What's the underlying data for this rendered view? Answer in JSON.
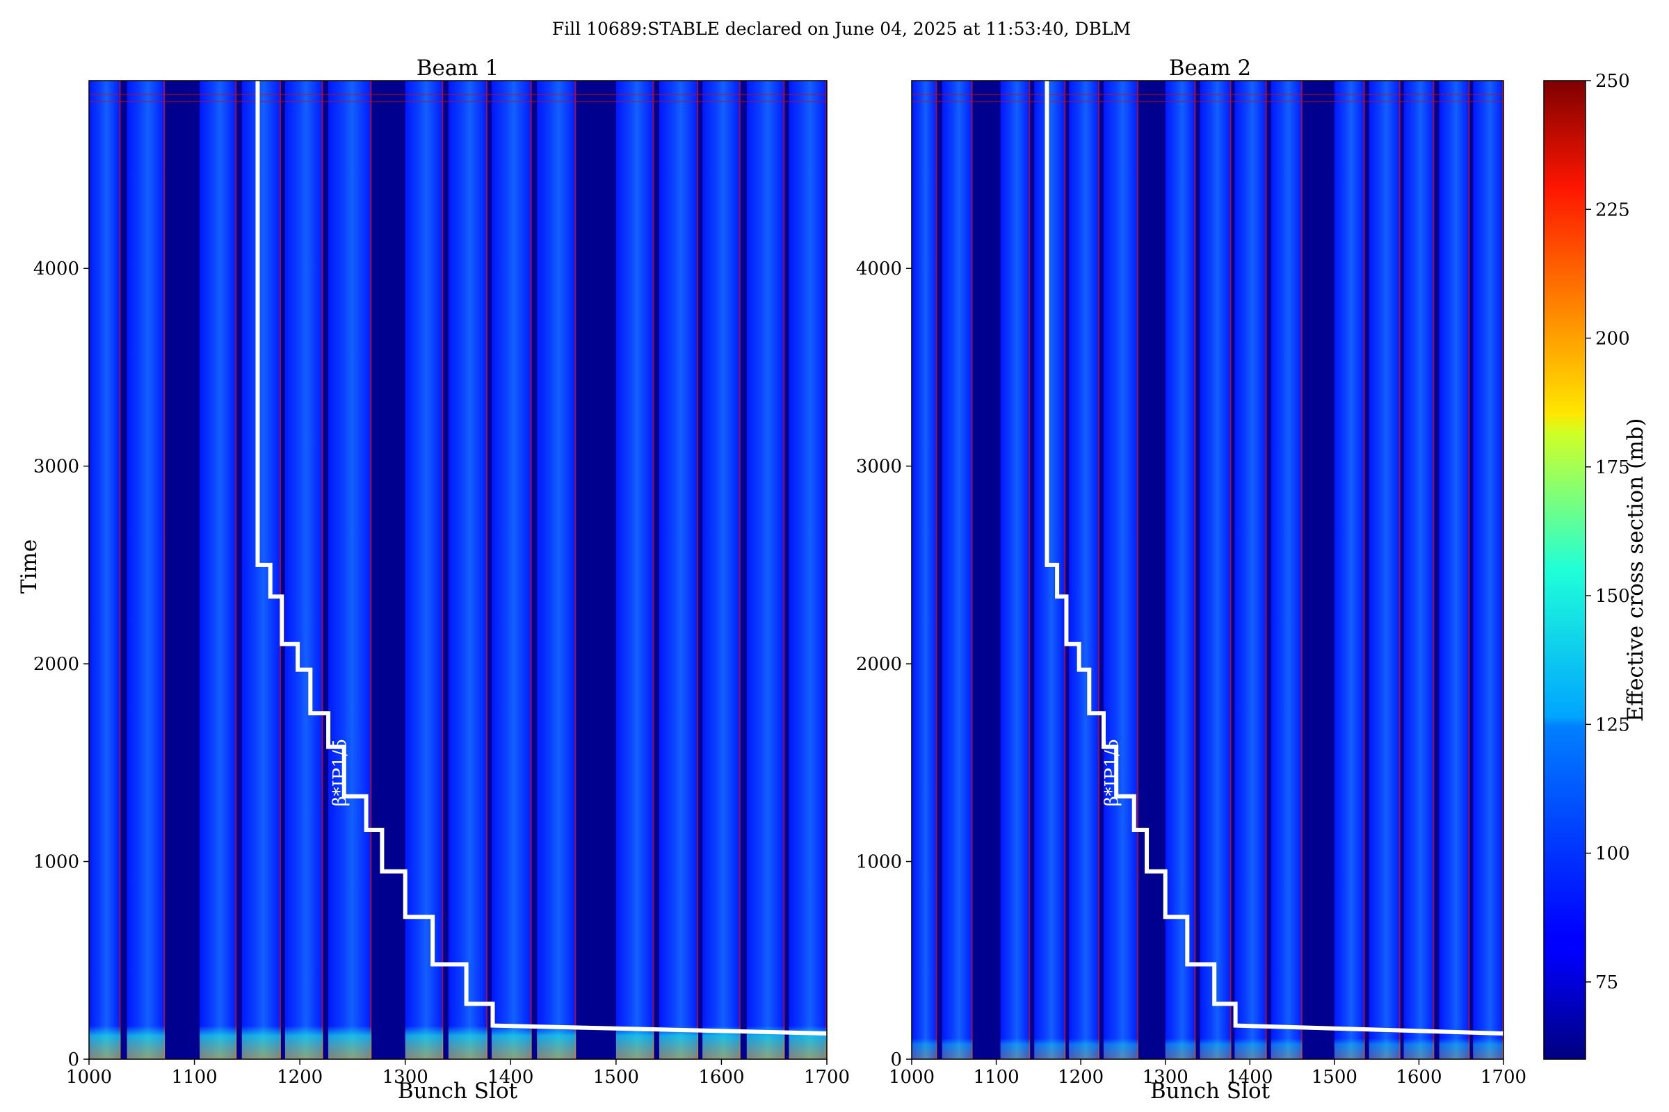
{
  "suptitle": "Fill 10689:STABLE declared on June 04, 2025 at 11:53:40, DBLM",
  "colors": {
    "background_low": "#00008f",
    "field_blue": "#0a2aff",
    "hot": "#8b0000",
    "step_line": "#ffffff"
  },
  "chart_data": [
    {
      "type": "heatmap",
      "title": "Beam 1",
      "xlabel": "Bunch Slot",
      "ylabel": "Time",
      "xlim": [
        1000,
        1700
      ],
      "ylim": [
        0,
        4950
      ],
      "xticks": [
        1000,
        1100,
        1200,
        1300,
        1400,
        1500,
        1600,
        1700
      ],
      "yticks": [
        0,
        1000,
        2000,
        3000,
        4000
      ],
      "annotation": "β*IP1/5",
      "filled_bands": [
        [
          1000,
          1030
        ],
        [
          1036,
          1072
        ],
        [
          1105,
          1140
        ],
        [
          1145,
          1182
        ],
        [
          1186,
          1222
        ],
        [
          1227,
          1268
        ],
        [
          1300,
          1336
        ],
        [
          1341,
          1378
        ],
        [
          1382,
          1420
        ],
        [
          1425,
          1462
        ],
        [
          1500,
          1536
        ],
        [
          1541,
          1578
        ],
        [
          1582,
          1618
        ],
        [
          1624,
          1660
        ],
        [
          1664,
          1700
        ]
      ],
      "beta_star_steps": [
        [
          1160,
          4950
        ],
        [
          1160,
          2500
        ],
        [
          1172,
          2500
        ],
        [
          1172,
          2340
        ],
        [
          1183,
          2340
        ],
        [
          1183,
          2100
        ],
        [
          1198,
          2100
        ],
        [
          1198,
          1970
        ],
        [
          1210,
          1970
        ],
        [
          1210,
          1750
        ],
        [
          1227,
          1750
        ],
        [
          1227,
          1580
        ],
        [
          1242,
          1580
        ],
        [
          1242,
          1330
        ],
        [
          1263,
          1330
        ],
        [
          1263,
          1160
        ],
        [
          1278,
          1160
        ],
        [
          1278,
          950
        ],
        [
          1300,
          950
        ],
        [
          1300,
          720
        ],
        [
          1326,
          720
        ],
        [
          1326,
          480
        ],
        [
          1358,
          480
        ],
        [
          1358,
          280
        ],
        [
          1383,
          280
        ],
        [
          1383,
          170
        ],
        [
          1700,
          130
        ]
      ]
    },
    {
      "type": "heatmap",
      "title": "Beam 2",
      "xlabel": "Bunch Slot",
      "ylabel": "",
      "xlim": [
        1000,
        1700
      ],
      "ylim": [
        0,
        4950
      ],
      "xticks": [
        1000,
        1100,
        1200,
        1300,
        1400,
        1500,
        1600,
        1700
      ],
      "yticks": [
        0,
        1000,
        2000,
        3000,
        4000
      ],
      "annotation": "β*IP1/5",
      "filled_bands": [
        [
          1000,
          1030
        ],
        [
          1036,
          1072
        ],
        [
          1105,
          1140
        ],
        [
          1145,
          1182
        ],
        [
          1186,
          1222
        ],
        [
          1227,
          1268
        ],
        [
          1300,
          1336
        ],
        [
          1341,
          1378
        ],
        [
          1382,
          1420
        ],
        [
          1425,
          1462
        ],
        [
          1500,
          1536
        ],
        [
          1541,
          1578
        ],
        [
          1582,
          1618
        ],
        [
          1624,
          1660
        ],
        [
          1664,
          1700
        ]
      ],
      "beta_star_steps": [
        [
          1160,
          4950
        ],
        [
          1160,
          2500
        ],
        [
          1172,
          2500
        ],
        [
          1172,
          2340
        ],
        [
          1183,
          2340
        ],
        [
          1183,
          2100
        ],
        [
          1198,
          2100
        ],
        [
          1198,
          1970
        ],
        [
          1210,
          1970
        ],
        [
          1210,
          1750
        ],
        [
          1227,
          1750
        ],
        [
          1227,
          1580
        ],
        [
          1242,
          1580
        ],
        [
          1242,
          1330
        ],
        [
          1263,
          1330
        ],
        [
          1263,
          1160
        ],
        [
          1278,
          1160
        ],
        [
          1278,
          950
        ],
        [
          1300,
          950
        ],
        [
          1300,
          720
        ],
        [
          1326,
          720
        ],
        [
          1326,
          480
        ],
        [
          1358,
          480
        ],
        [
          1358,
          280
        ],
        [
          1383,
          280
        ],
        [
          1383,
          170
        ],
        [
          1700,
          130
        ]
      ]
    }
  ],
  "colorbar": {
    "label": "Effective cross section (mb)",
    "range": [
      60,
      250
    ],
    "ticks": [
      75,
      100,
      125,
      150,
      175,
      200,
      225,
      250
    ],
    "colormap": "jet"
  }
}
